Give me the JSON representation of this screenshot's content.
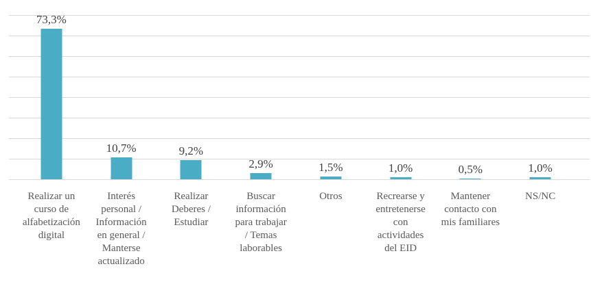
{
  "chart_data": {
    "type": "bar",
    "title": "",
    "xlabel": "",
    "ylabel": "",
    "categories": [
      "Realizar un curso de alfabetización digital",
      "Interés personal / Información en general / Manterse actualizado",
      "Realizar Deberes / Estudiar",
      "Buscar información para trabajar / Temas laborables",
      "Otros",
      "Recrearse y entretenerse con actividades del EID",
      "Mantener contacto con mis familiares",
      "NS/NC"
    ],
    "tick_labels": [
      "Realizar un\ncurso de\nalfabetización\ndigital",
      "Interés\npersonal /\nInformación\nen general /\nManterse\nactualizado",
      "Realizar\nDeberes /\nEstudiar",
      "Buscar\ninformación\npara trabajar\n/ Temas\nlaborables",
      "Otros",
      "Recrearse y\nentretenerse\ncon\nactividades\ndel EID",
      "Mantener\ncontacto con\nmis familiares",
      "NS/NC"
    ],
    "values": [
      73.3,
      10.7,
      9.2,
      2.9,
      1.5,
      1.0,
      0.5,
      1.0
    ],
    "value_labels": [
      "73,3%",
      "10,7%",
      "9,2%",
      "2,9%",
      "1,5%",
      "1,0%",
      "0,5%",
      "1,0%"
    ],
    "ylim": [
      0,
      80
    ],
    "grid_step": 10,
    "grid": true,
    "legend": false,
    "axis_ticks_visible": false,
    "colors": {
      "bar": "#4BACC6",
      "gridline": "#D9D9D9",
      "value_label": "#404040",
      "category_label": "#595959"
    }
  }
}
